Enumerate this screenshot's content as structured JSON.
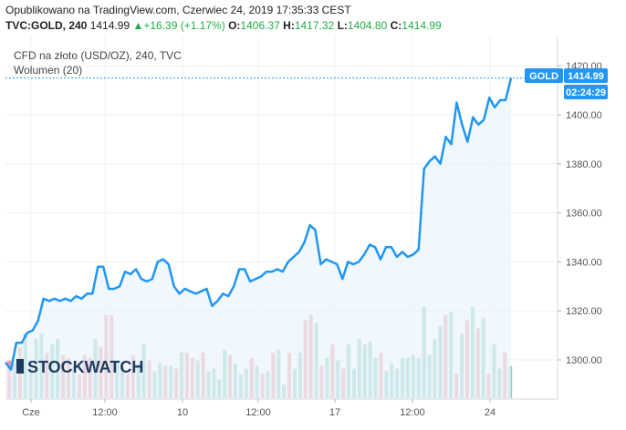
{
  "header": {
    "published": "Opublikowano na TradingView.com, Czerwiec 24, 2019 17:35:33 CEST",
    "symbol": "TVC:GOLD, 240",
    "last": "1414.99",
    "change": "+16.39 (+1.17%)",
    "o_label": "O:",
    "o_value": "1406.37",
    "h_label": "H:",
    "h_value": "1417.32",
    "l_label": "L:",
    "l_value": "1404.80",
    "c_label": "C:",
    "c_value": "1414.99"
  },
  "legend": {
    "title": "CFD na złoto (USD/OZ), 240, TVC",
    "volume": "Wolumen (20)"
  },
  "price_tag": {
    "ticker": "GOLD",
    "price": "1414.99",
    "countdown": "02:24:29"
  },
  "watermark": "STOCKWATCH",
  "colors": {
    "line": "#2196f3",
    "area": "#eaf3fc",
    "vol_up": "#8fcdc3",
    "vol_down": "#ee9ea2",
    "tag_bg": "#2196f3",
    "grid": "#eef0f3"
  },
  "chart_data": {
    "type": "line",
    "y_axis": {
      "range": [
        1285,
        1425
      ],
      "ticks": [
        1300,
        1320,
        1340,
        1360,
        1380,
        1400,
        1420
      ]
    },
    "x_axis": {
      "tick_labels": [
        "Cze",
        "12:00",
        "10",
        "12:00",
        "17",
        "12:00",
        "24"
      ]
    },
    "grid": true,
    "last_value": 1414.99,
    "series": [
      {
        "values": [
          1299,
          1296,
          1307,
          1307,
          1311,
          1312,
          1316,
          1325,
          1324,
          1325,
          1324,
          1325,
          1324,
          1326,
          1325,
          1327,
          1327,
          1338,
          1338,
          1329,
          1329,
          1330,
          1336,
          1335,
          1337,
          1333,
          1332,
          1333,
          1340,
          1341,
          1339,
          1330,
          1327,
          1329,
          1328,
          1327,
          1328,
          1329,
          1322,
          1324,
          1327,
          1326,
          1330,
          1337,
          1337,
          1332,
          1333,
          1334,
          1336,
          1336,
          1337,
          1336,
          1340,
          1342,
          1344,
          1348,
          1355,
          1353,
          1339,
          1341,
          1340,
          1339,
          1333,
          1340,
          1339,
          1340,
          1343,
          1347,
          1346,
          1341,
          1346,
          1346,
          1342,
          1344,
          1342,
          1343,
          1345,
          1378,
          1381,
          1383,
          1380,
          1391,
          1388,
          1405,
          1396,
          1389,
          1399,
          1396,
          1398,
          1407,
          1403,
          1406,
          1406,
          1415
        ]
      }
    ],
    "volume": {
      "values": [
        14,
        13,
        19,
        24,
        14,
        22,
        24,
        17,
        20,
        22,
        16,
        15,
        12,
        9,
        16,
        15,
        22,
        19,
        31,
        31,
        14,
        12,
        9,
        16,
        13,
        20,
        14,
        10,
        13,
        12,
        12,
        11,
        17,
        17,
        15,
        14,
        17,
        10,
        11,
        7,
        18,
        16,
        13,
        9,
        11,
        15,
        12,
        9,
        10,
        17,
        18,
        5,
        17,
        11,
        17,
        29,
        31,
        28,
        12,
        15,
        20,
        14,
        11,
        20,
        11,
        22,
        20,
        21,
        15,
        17,
        10,
        13,
        11,
        15,
        15,
        16,
        15,
        34,
        16,
        22,
        27,
        31,
        32,
        9,
        24,
        29,
        34,
        26,
        30,
        9,
        20,
        11,
        17,
        12
      ],
      "direction": [
        "d",
        "u",
        "d",
        "u",
        "u",
        "u",
        "u",
        "d",
        "u",
        "u",
        "d",
        "d",
        "u",
        "d",
        "d",
        "d",
        "u",
        "d",
        "d",
        "d",
        "u",
        "u",
        "d",
        "d",
        "u",
        "u",
        "d",
        "u",
        "u",
        "d",
        "u",
        "d",
        "u",
        "d",
        "d",
        "u",
        "d",
        "u",
        "u",
        "u",
        "u",
        "d",
        "u",
        "u",
        "u",
        "d",
        "u",
        "d",
        "u",
        "d",
        "u",
        "u",
        "d",
        "u",
        "u",
        "d",
        "d",
        "u",
        "d",
        "u",
        "d",
        "u",
        "d",
        "u",
        "u",
        "u",
        "u",
        "u",
        "u",
        "d",
        "u",
        "u",
        "u",
        "u",
        "u",
        "u",
        "u",
        "u",
        "u",
        "u",
        "u",
        "d",
        "u",
        "d",
        "u",
        "d",
        "u",
        "d",
        "u",
        "d",
        "u",
        "u",
        "d",
        "u"
      ]
    }
  }
}
